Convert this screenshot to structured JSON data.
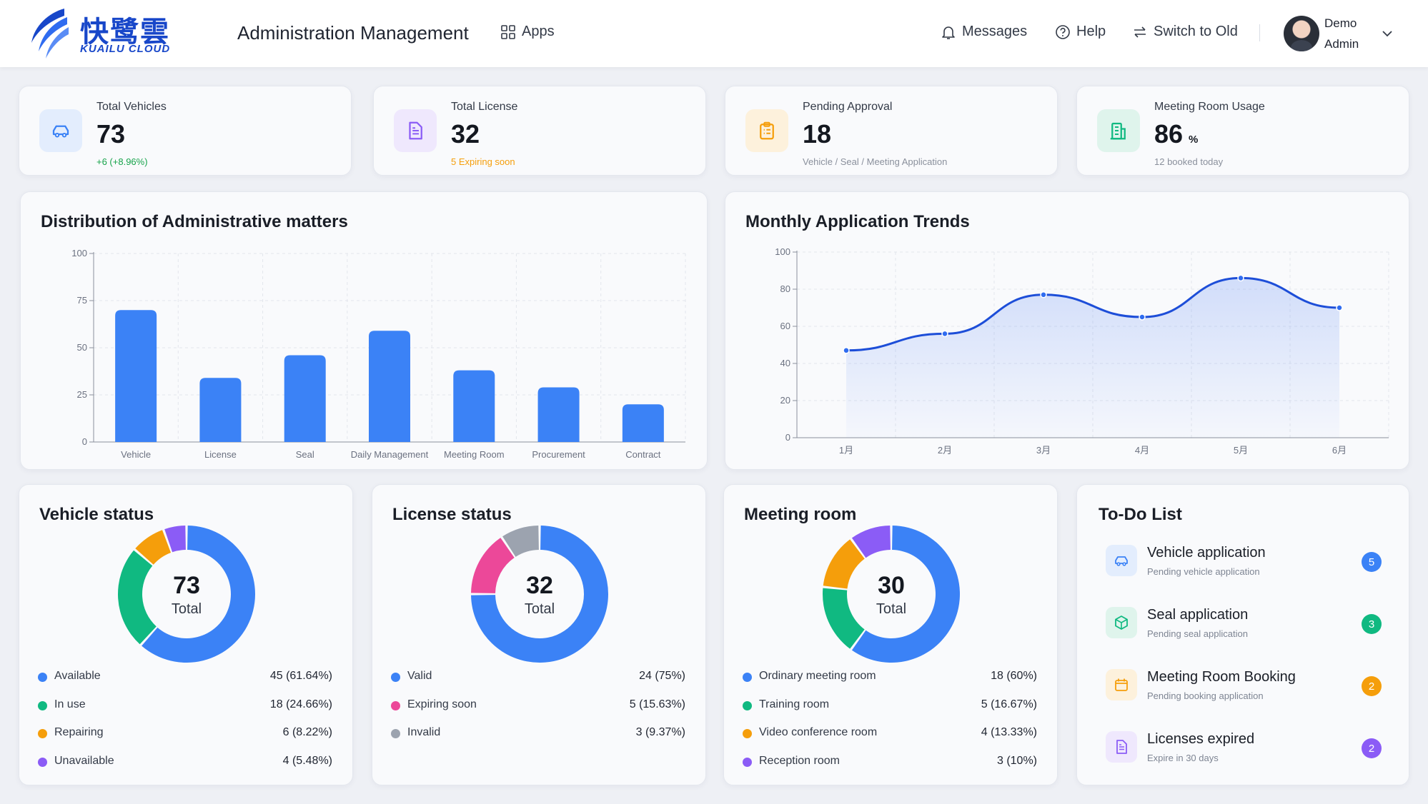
{
  "header": {
    "logo_cn": "快鹭雲",
    "logo_en": "KUAILU CLOUD",
    "title": "Administration Management",
    "apps_label": "Apps",
    "messages_label": "Messages",
    "help_label": "Help",
    "switch_label": "Switch to Old",
    "user_name": "Demo",
    "user_role": "Admin"
  },
  "stats": [
    {
      "label": "Total Vehicles",
      "value": "73",
      "unit": "",
      "sub": "+6 (+8.96%)",
      "sub_color": "#16a34a",
      "icon": "car-icon",
      "color": "#3b82f6",
      "bg": "#e3edfd"
    },
    {
      "label": "Total License",
      "value": "32",
      "unit": "",
      "sub": "5 Expiring soon",
      "sub_color": "#f59e0b",
      "icon": "document-icon",
      "color": "#8b5cf6",
      "bg": "#efe8fd"
    },
    {
      "label": "Pending Approval",
      "value": "18",
      "unit": "",
      "sub": "Vehicle / Seal / Meeting Application",
      "sub_color": "#8a909c",
      "icon": "clipboard-icon",
      "color": "#f59e0b",
      "bg": "#fdf1dc"
    },
    {
      "label": "Meeting Room Usage",
      "value": "86",
      "unit": "%",
      "sub": "12 booked today",
      "sub_color": "#8a909c",
      "icon": "building-icon",
      "color": "#10b981",
      "bg": "#dff4ec"
    }
  ],
  "chart_data": [
    {
      "type": "bar",
      "title": "Distribution of Administrative matters",
      "categories": [
        "Vehicle",
        "License",
        "Seal",
        "Daily Management",
        "Meeting Room",
        "Procurement",
        "Contract"
      ],
      "values": [
        70,
        34,
        46,
        59,
        38,
        29,
        20
      ],
      "ylim": [
        0,
        100
      ],
      "yticks": [
        0,
        25,
        50,
        75,
        100
      ],
      "grid": true,
      "color": "#3b82f6"
    },
    {
      "type": "line",
      "title": "Monthly Application Trends",
      "categories": [
        "1月",
        "2月",
        "3月",
        "4月",
        "5月",
        "6月"
      ],
      "values": [
        47,
        56,
        77,
        65,
        86,
        70
      ],
      "ylim": [
        0,
        100
      ],
      "yticks": [
        0,
        20,
        40,
        60,
        80,
        100
      ],
      "grid": true,
      "area": true,
      "color": "#1d4ed8"
    }
  ],
  "donuts": [
    {
      "title": "Vehicle status",
      "total": "73",
      "total_label": "Total",
      "segments": [
        {
          "name": "Available",
          "value": 45,
          "display": "45 (61.64%)",
          "color": "#3b82f6"
        },
        {
          "name": "In use",
          "value": 18,
          "display": "18 (24.66%)",
          "color": "#10b981"
        },
        {
          "name": "Repairing",
          "value": 6,
          "display": "6 (8.22%)",
          "color": "#f59e0b"
        },
        {
          "name": "Unavailable",
          "value": 4,
          "display": "4 (5.48%)",
          "color": "#8b5cf6"
        }
      ]
    },
    {
      "title": "License status",
      "total": "32",
      "total_label": "Total",
      "segments": [
        {
          "name": "Valid",
          "value": 24,
          "display": "24 (75%)",
          "color": "#3b82f6"
        },
        {
          "name": "Expiring soon",
          "value": 5,
          "display": "5 (15.63%)",
          "color": "#ec4899"
        },
        {
          "name": "Invalid",
          "value": 3,
          "display": "3 (9.37%)",
          "color": "#9ca3af"
        }
      ]
    },
    {
      "title": "Meeting room",
      "total": "30",
      "total_label": "Total",
      "segments": [
        {
          "name": "Ordinary meeting room",
          "value": 18,
          "display": "18 (60%)",
          "color": "#3b82f6"
        },
        {
          "name": "Training room",
          "value": 5,
          "display": "5 (16.67%)",
          "color": "#10b981"
        },
        {
          "name": "Video conference room",
          "value": 4,
          "display": "4 (13.33%)",
          "color": "#f59e0b"
        },
        {
          "name": "Reception room",
          "value": 3,
          "display": "3 (10%)",
          "color": "#8b5cf6"
        }
      ]
    }
  ],
  "todo": {
    "title": "To-Do List",
    "items": [
      {
        "title": "Vehicle application",
        "sub": "Pending vehicle application",
        "count": "5",
        "color": "#3b82f6",
        "bg": "#e3edfd",
        "icon": "car-icon"
      },
      {
        "title": "Seal application",
        "sub": "Pending seal application",
        "count": "3",
        "color": "#10b981",
        "bg": "#dff4ec",
        "icon": "box-icon"
      },
      {
        "title": "Meeting Room Booking",
        "sub": "Pending booking application",
        "count": "2",
        "color": "#f59e0b",
        "bg": "#fdf1dc",
        "icon": "calendar-icon"
      },
      {
        "title": "Licenses expired",
        "sub": "Expire in 30 days",
        "count": "2",
        "color": "#8b5cf6",
        "bg": "#efe8fd",
        "icon": "document-icon"
      }
    ]
  }
}
